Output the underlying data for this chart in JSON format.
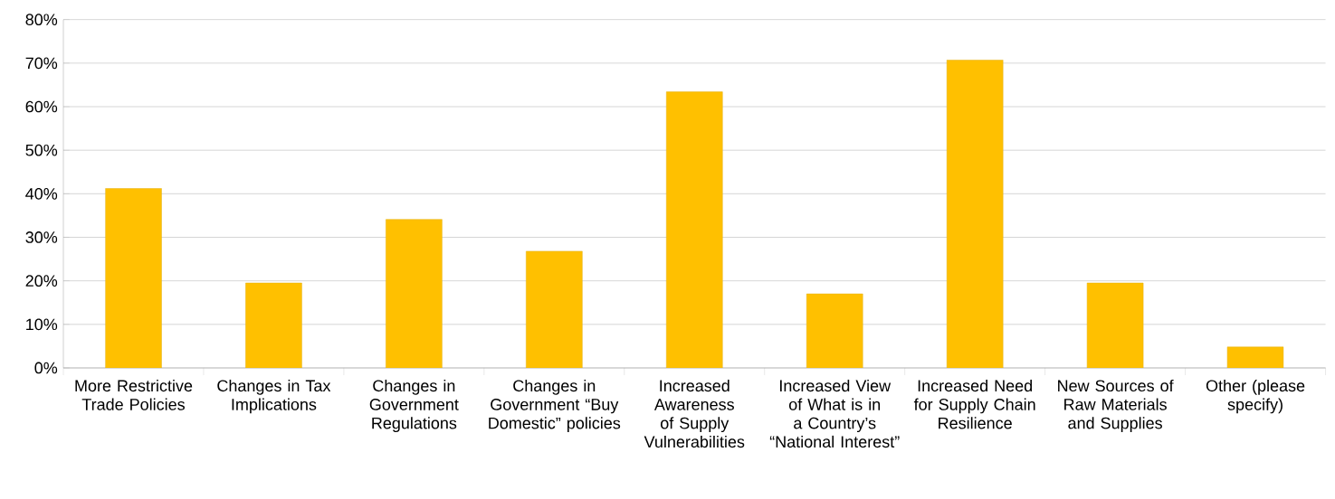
{
  "chart_data": {
    "type": "bar",
    "categories": [
      "More Restrictive Trade Policies",
      "Changes in Tax Implications",
      "Changes in Government Regulations",
      "Changes in Government “Buy Domestic” policies",
      "Increased Awareness of Supply Vulnerabilities",
      "Increased View of What is in a Country’s “National Interest”",
      "Increased Need for Supply Chain Resilience",
      "New Sources of Raw Materials and Supplies",
      "Other (please specify)"
    ],
    "values": [
      41.2,
      19.5,
      34.1,
      26.8,
      63.4,
      17.0,
      70.7,
      19.5,
      4.8
    ],
    "color": "#ffc000",
    "ylim": [
      0,
      80
    ],
    "yticks": [
      {
        "value": 0,
        "label": "0%"
      },
      {
        "value": 10,
        "label": "10%"
      },
      {
        "value": 20,
        "label": "20%"
      },
      {
        "value": 30,
        "label": "30%"
      },
      {
        "value": 40,
        "label": "40%"
      },
      {
        "value": 50,
        "label": "50%"
      },
      {
        "value": 60,
        "label": "60%"
      },
      {
        "value": 70,
        "label": "70%"
      },
      {
        "value": 80,
        "label": "80%"
      }
    ],
    "grid": "y"
  }
}
